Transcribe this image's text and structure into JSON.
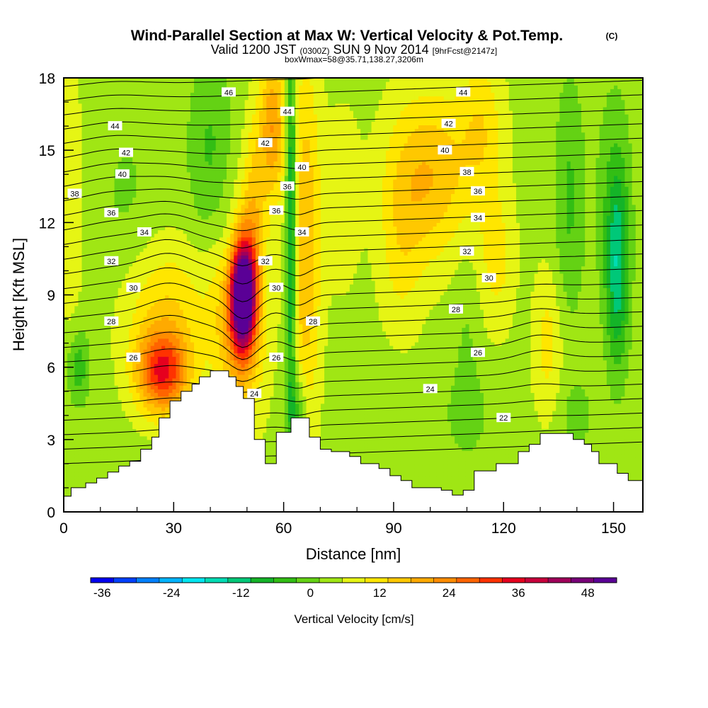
{
  "titles": {
    "main": "Wind-Parallel Section at Max W: Vertical Velocity & Pot.Temp.",
    "copyright": "(C)",
    "valid_prefix": "Valid 1200 JST",
    "valid_utc": "(0300Z)",
    "valid_date": "SUN 9 Nov 2014",
    "forecast": "[9hrFcst@2147z]",
    "box_info": "boxWmax=58@35.71,138.27,3206m"
  },
  "chart_data": {
    "type": "heatmap",
    "title": "Wind-Parallel Section at Max W: Vertical Velocity & Pot.Temp.",
    "xlabel": "Distance [nm]",
    "ylabel": "Height [Kft MSL]",
    "xlim": [
      0,
      158
    ],
    "ylim": [
      0,
      18
    ],
    "x_ticks": [
      0,
      30,
      60,
      90,
      120,
      150
    ],
    "x_tick_labels": [
      "0",
      "30",
      "60",
      "90",
      "120",
      "150"
    ],
    "y_ticks": [
      0,
      3,
      6,
      9,
      12,
      15,
      18
    ],
    "y_tick_labels": [
      "0",
      "3",
      "6",
      "9",
      "12",
      "15",
      "18"
    ],
    "grid": false,
    "colorbar": {
      "label": "Vertical Velocity [cm/s]",
      "min": -38,
      "max": 53,
      "tick_values": [
        -36,
        -24,
        -12,
        0,
        12,
        24,
        36,
        48
      ],
      "tick_labels": [
        "-36",
        "-24",
        "-12",
        "0",
        "12",
        "24",
        "36",
        "48"
      ],
      "colors": [
        "#0000f0",
        "#0040ff",
        "#0080ff",
        "#00b4ff",
        "#00e6f0",
        "#00dcb4",
        "#00c878",
        "#14b428",
        "#32be14",
        "#64d214",
        "#a0e614",
        "#e6f514",
        "#ffe600",
        "#ffc800",
        "#ffaa00",
        "#ff8c00",
        "#ff6400",
        "#ff3200",
        "#e6001e",
        "#c8003c",
        "#a0005a",
        "#780078",
        "#5a0096"
      ]
    },
    "terrain_kft": [
      [
        0,
        0.65
      ],
      [
        2,
        0.65
      ],
      [
        2,
        1.0
      ],
      [
        6,
        1.0
      ],
      [
        6,
        1.2
      ],
      [
        9,
        1.2
      ],
      [
        9,
        1.4
      ],
      [
        12,
        1.4
      ],
      [
        12,
        1.65
      ],
      [
        15,
        1.65
      ],
      [
        15,
        1.9
      ],
      [
        18,
        1.9
      ],
      [
        18,
        2.1
      ],
      [
        21,
        2.1
      ],
      [
        21,
        2.6
      ],
      [
        24,
        2.6
      ],
      [
        24,
        3.1
      ],
      [
        26,
        3.1
      ],
      [
        26,
        3.9
      ],
      [
        29,
        3.9
      ],
      [
        29,
        4.6
      ],
      [
        32,
        4.6
      ],
      [
        32,
        5.0
      ],
      [
        35,
        5.0
      ],
      [
        35,
        5.3
      ],
      [
        37,
        5.3
      ],
      [
        37,
        5.6
      ],
      [
        40,
        5.6
      ],
      [
        40,
        5.85
      ],
      [
        45,
        5.85
      ],
      [
        45,
        5.6
      ],
      [
        47,
        5.6
      ],
      [
        47,
        5.2
      ],
      [
        49,
        5.2
      ],
      [
        49,
        4.7
      ],
      [
        52,
        4.7
      ],
      [
        52,
        3.0
      ],
      [
        55,
        3.0
      ],
      [
        55,
        2.0
      ],
      [
        58,
        2.0
      ],
      [
        58,
        3.3
      ],
      [
        62,
        3.3
      ],
      [
        62,
        3.9
      ],
      [
        67,
        3.9
      ],
      [
        67,
        3.1
      ],
      [
        70,
        3.1
      ],
      [
        70,
        2.6
      ],
      [
        73,
        2.6
      ],
      [
        73,
        2.5
      ],
      [
        78,
        2.5
      ],
      [
        78,
        2.3
      ],
      [
        81,
        2.3
      ],
      [
        81,
        2.0
      ],
      [
        86,
        2.0
      ],
      [
        86,
        1.8
      ],
      [
        89,
        1.8
      ],
      [
        89,
        1.5
      ],
      [
        92,
        1.5
      ],
      [
        92,
        1.3
      ],
      [
        95,
        1.3
      ],
      [
        95,
        1.0
      ],
      [
        103,
        1.0
      ],
      [
        103,
        0.9
      ],
      [
        106,
        0.9
      ],
      [
        106,
        0.7
      ],
      [
        109,
        0.7
      ],
      [
        109,
        0.9
      ],
      [
        112,
        0.9
      ],
      [
        112,
        1.7
      ],
      [
        118,
        1.7
      ],
      [
        118,
        2.0
      ],
      [
        124,
        2.0
      ],
      [
        124,
        2.5
      ],
      [
        127,
        2.5
      ],
      [
        127,
        2.8
      ],
      [
        130,
        2.8
      ],
      [
        130,
        3.25
      ],
      [
        139,
        3.25
      ],
      [
        139,
        3.0
      ],
      [
        142,
        3.0
      ],
      [
        142,
        2.8
      ],
      [
        144,
        2.8
      ],
      [
        144,
        2.5
      ],
      [
        146,
        2.5
      ],
      [
        146,
        2.0
      ],
      [
        151,
        2.0
      ],
      [
        151,
        1.6
      ],
      [
        154,
        1.6
      ],
      [
        154,
        1.3
      ],
      [
        158,
        1.3
      ],
      [
        158,
        0
      ]
    ],
    "w_field_cm_s": {
      "background": 4,
      "features": [
        {
          "x": 49,
          "y": 9.0,
          "sx": 3.2,
          "sy": 2.1,
          "w": 52
        },
        {
          "x": 48,
          "y": 8.2,
          "sx": 6.5,
          "sy": 4.2,
          "w": 18
        },
        {
          "x": 27,
          "y": 5.8,
          "sx": 7,
          "sy": 1.7,
          "w": 28
        },
        {
          "x": 28,
          "y": 8.5,
          "sx": 12,
          "sy": 2.8,
          "w": 9
        },
        {
          "x": 66,
          "y": 11,
          "sx": 4,
          "sy": 8,
          "w": 13
        },
        {
          "x": 57,
          "y": 16,
          "sx": 3.5,
          "sy": 3,
          "w": 17
        },
        {
          "x": 52,
          "y": 13,
          "sx": 3,
          "sy": 3.5,
          "w": 9
        },
        {
          "x": 62,
          "y": 12,
          "sx": 1.4,
          "sy": 9,
          "w": -19
        },
        {
          "x": 64,
          "y": 4,
          "sx": 2.5,
          "sy": 1.8,
          "w": -10
        },
        {
          "x": 40,
          "y": 15,
          "sx": 6,
          "sy": 4,
          "w": -7
        },
        {
          "x": 45,
          "y": 11,
          "sx": 3,
          "sy": 2,
          "w": -4
        },
        {
          "x": 17,
          "y": 13,
          "sx": 9,
          "sy": 4,
          "w": -3
        },
        {
          "x": 4,
          "y": 6,
          "sx": 3,
          "sy": 1.6,
          "w": -9
        },
        {
          "x": 2,
          "y": 13,
          "sx": 3,
          "sy": 6,
          "w": 5
        },
        {
          "x": 100,
          "y": 14,
          "sx": 11,
          "sy": 3.5,
          "w": 13
        },
        {
          "x": 114,
          "y": 16,
          "sx": 6,
          "sy": 3,
          "w": 8
        },
        {
          "x": 92,
          "y": 11,
          "sx": 6,
          "sy": 4,
          "w": 6
        },
        {
          "x": 76,
          "y": 13,
          "sx": 5,
          "sy": 4,
          "w": 4
        },
        {
          "x": 118,
          "y": 10.5,
          "sx": 5,
          "sy": 3,
          "w": 7
        },
        {
          "x": 132,
          "y": 7,
          "sx": 4,
          "sy": 3,
          "w": 7
        },
        {
          "x": 85,
          "y": 4.5,
          "sx": 10,
          "sy": 2,
          "w": -2
        },
        {
          "x": 110,
          "y": 4,
          "sx": 8,
          "sy": 1.8,
          "w": -3
        },
        {
          "x": 110,
          "y": 7,
          "sx": 4,
          "sy": 4,
          "w": -3
        },
        {
          "x": 138,
          "y": 13,
          "sx": 4,
          "sy": 5,
          "w": -7
        },
        {
          "x": 151,
          "y": 10,
          "sx": 3,
          "sy": 4,
          "w": -15
        },
        {
          "x": 150,
          "y": 13,
          "sx": 5,
          "sy": 5,
          "w": -5
        },
        {
          "x": 140,
          "y": 4,
          "sx": 5,
          "sy": 1.5,
          "w": -4
        }
      ]
    },
    "theta_contours": {
      "levels": [
        22,
        23,
        24,
        25,
        26,
        27,
        28,
        29,
        30,
        31,
        32,
        33,
        34,
        35,
        36,
        37,
        38,
        39,
        40,
        41,
        42,
        43,
        44,
        45,
        46,
        47,
        48
      ],
      "base_height_kft": [
        [
          0,
          2.0
        ],
        [
          158,
          2.9
        ]
      ],
      "spacing_kft": 0.6,
      "perturbations": [
        {
          "x": 49,
          "y": 8.3,
          "sx": 5,
          "sy": 3,
          "dh": -0.9
        },
        {
          "x": 29,
          "y": 9.5,
          "sx": 9,
          "sy": 4,
          "dh": 0.7
        },
        {
          "x": 14,
          "y": 13,
          "sx": 12,
          "sy": 5,
          "dh": 0.4
        },
        {
          "x": 64,
          "y": 9,
          "sx": 4,
          "sy": 5,
          "dh": -0.4
        },
        {
          "x": 130,
          "y": 7,
          "sx": 8,
          "sy": 2,
          "dh": 0.4
        }
      ]
    },
    "contour_labels": [
      {
        "x": 14,
        "y": 16.0,
        "text": "44"
      },
      {
        "x": 17,
        "y": 14.9,
        "text": "42"
      },
      {
        "x": 16,
        "y": 14.0,
        "text": "40"
      },
      {
        "x": 3,
        "y": 13.2,
        "text": "38"
      },
      {
        "x": 13,
        "y": 12.4,
        "text": "36"
      },
      {
        "x": 22,
        "y": 11.6,
        "text": "34"
      },
      {
        "x": 13,
        "y": 10.4,
        "text": "32"
      },
      {
        "x": 19,
        "y": 9.3,
        "text": "30"
      },
      {
        "x": 13,
        "y": 7.9,
        "text": "28"
      },
      {
        "x": 19,
        "y": 6.4,
        "text": "26"
      },
      {
        "x": 45,
        "y": 17.4,
        "text": "46"
      },
      {
        "x": 61,
        "y": 16.6,
        "text": "44"
      },
      {
        "x": 55,
        "y": 15.3,
        "text": "42"
      },
      {
        "x": 65,
        "y": 14.3,
        "text": "40"
      },
      {
        "x": 61,
        "y": 13.5,
        "text": "36"
      },
      {
        "x": 58,
        "y": 12.5,
        "text": "36"
      },
      {
        "x": 65,
        "y": 11.6,
        "text": "34"
      },
      {
        "x": 55,
        "y": 10.4,
        "text": "32"
      },
      {
        "x": 58,
        "y": 9.3,
        "text": "30"
      },
      {
        "x": 68,
        "y": 7.9,
        "text": "28"
      },
      {
        "x": 58,
        "y": 6.4,
        "text": "26"
      },
      {
        "x": 52,
        "y": 4.9,
        "text": "24"
      },
      {
        "x": 109,
        "y": 17.4,
        "text": "44"
      },
      {
        "x": 105,
        "y": 16.1,
        "text": "42"
      },
      {
        "x": 104,
        "y": 15.0,
        "text": "40"
      },
      {
        "x": 110,
        "y": 14.1,
        "text": "38"
      },
      {
        "x": 113,
        "y": 13.3,
        "text": "36"
      },
      {
        "x": 113,
        "y": 12.2,
        "text": "34"
      },
      {
        "x": 110,
        "y": 10.8,
        "text": "32"
      },
      {
        "x": 116,
        "y": 9.7,
        "text": "30"
      },
      {
        "x": 107,
        "y": 8.4,
        "text": "28"
      },
      {
        "x": 113,
        "y": 6.6,
        "text": "26"
      },
      {
        "x": 100,
        "y": 5.1,
        "text": "24"
      },
      {
        "x": 120,
        "y": 3.9,
        "text": "22"
      }
    ]
  }
}
